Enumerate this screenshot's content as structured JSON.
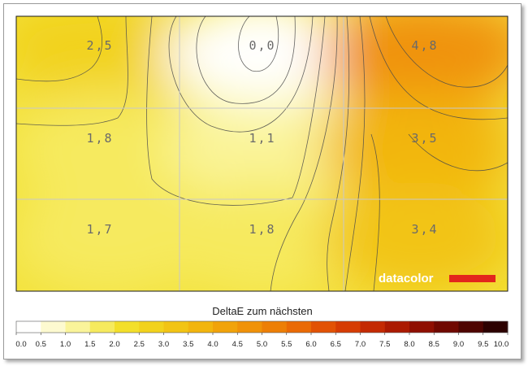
{
  "chart_data": {
    "type": "heatmap",
    "rows": 3,
    "cols": 3,
    "values": [
      [
        "2,5",
        "0,0",
        "4,8"
      ],
      [
        "1,8",
        "1,1",
        "3,5"
      ],
      [
        "1,7",
        "1,8",
        "3,4"
      ]
    ],
    "numeric_values": [
      [
        2.5,
        0.0,
        4.8
      ],
      [
        1.8,
        1.1,
        3.5
      ],
      [
        1.7,
        1.8,
        3.4
      ]
    ],
    "colorbar": {
      "title": "DeltaE zum nächsten",
      "ticks": [
        "0.0",
        "0.5",
        "1.0",
        "1.5",
        "2.0",
        "2.5",
        "3.0",
        "3.5",
        "4.0",
        "4.5",
        "5.0",
        "5.5",
        "6.0",
        "6.5",
        "7.0",
        "7.5",
        "8.0",
        "8.5",
        "9.0",
        "9.5",
        "10.0"
      ],
      "colors": [
        "#fffffe",
        "#fdfad0",
        "#faf49a",
        "#f6ea5e",
        "#f3df2a",
        "#f2d21c",
        "#f2c414",
        "#f2b50e",
        "#f1a30a",
        "#f09208",
        "#ed7f06",
        "#ea6a05",
        "#e25204",
        "#d63c03",
        "#c42a02",
        "#ab1a01",
        "#8f0f01",
        "#700800",
        "#4e0400",
        "#2c0100"
      ],
      "range": [
        0,
        10
      ]
    },
    "contours": "on",
    "grid": "on"
  },
  "logo": {
    "text": "datacolor",
    "accent": "#e3261c"
  }
}
